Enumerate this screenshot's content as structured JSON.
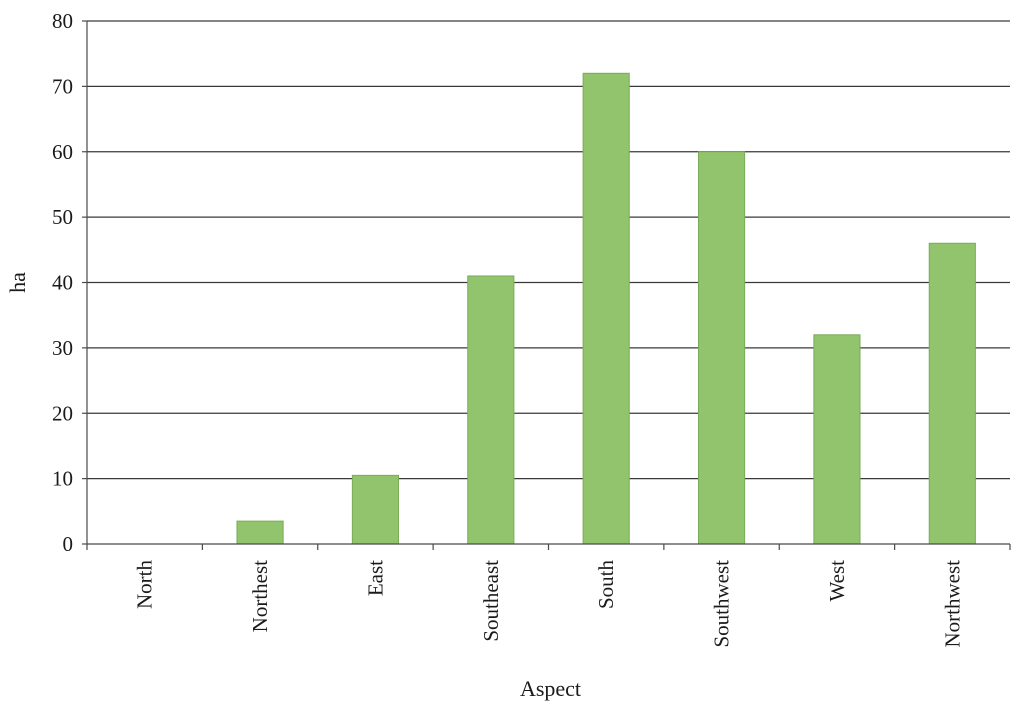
{
  "chart_data": {
    "type": "bar",
    "title": "",
    "xlabel": "Aspect",
    "ylabel": "ha",
    "categories": [
      "North",
      "Northest",
      "East",
      "Southeast",
      "South",
      "Southwest",
      "West",
      "Northwest"
    ],
    "values": [
      0,
      3.5,
      10.5,
      41,
      72,
      60,
      32,
      46
    ],
    "ylim": [
      0,
      80
    ],
    "yticks": [
      0,
      10,
      20,
      30,
      40,
      50,
      60,
      70,
      80
    ],
    "grid": true,
    "legend": "none",
    "colors": {
      "bar_fill": "#92c46e",
      "bar_edge": "#7aac58",
      "grid": "#3a3a3a",
      "axis": "#4a4a4a",
      "text": "#1a1a1a"
    }
  }
}
